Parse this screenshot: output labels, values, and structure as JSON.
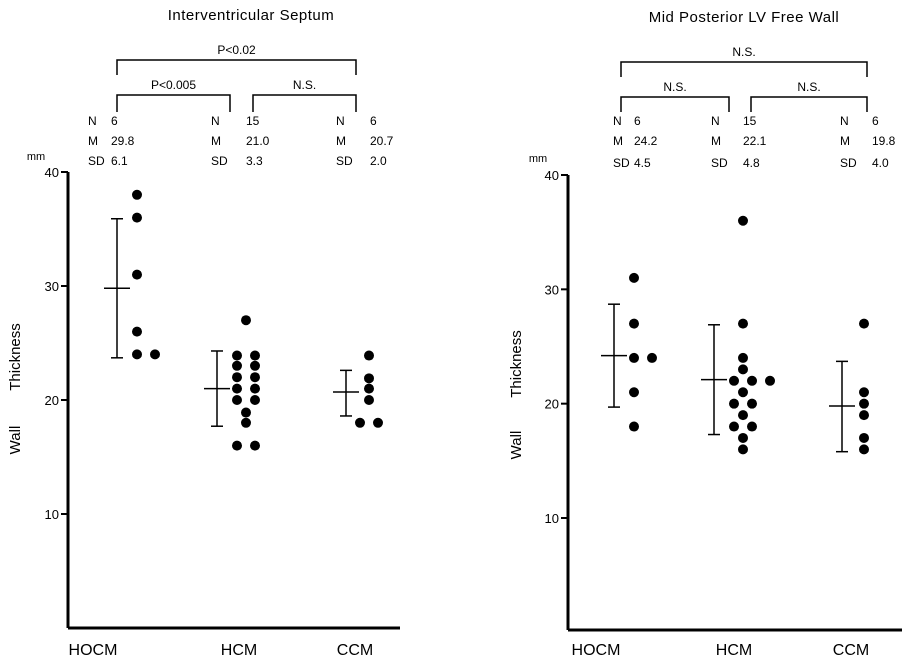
{
  "chart_data": [
    {
      "type": "scatter",
      "title": "Interventricular Septum",
      "unit": "mm",
      "ylabel_left": "Wall",
      "ylabel_right": "Thickness",
      "ylim": [
        0,
        40
      ],
      "yticks": [
        10,
        20,
        30,
        40
      ],
      "categories": [
        "HOCM",
        "HCM",
        "CCM"
      ],
      "groups": [
        {
          "category": "HOCM",
          "stats": {
            "N": "6",
            "M": "29.8",
            "SD": "6.1"
          },
          "mean": 29.8,
          "sd_low": 23.7,
          "sd_high": 35.9,
          "values": [
            38,
            36,
            31,
            26,
            24,
            24
          ]
        },
        {
          "category": "HCM",
          "stats": {
            "N": "15",
            "M": "21.0",
            "SD": "3.3"
          },
          "mean": 21.0,
          "sd_low": 17.7,
          "sd_high": 24.3,
          "values": [
            27,
            23.9,
            23.9,
            23,
            23,
            22,
            22,
            21,
            21,
            20,
            20,
            18.9,
            18,
            16,
            16
          ]
        },
        {
          "category": "CCM",
          "stats": {
            "N": "6",
            "M": "20.7",
            "SD": "2.0"
          },
          "mean": 20.7,
          "sd_low": 18.6,
          "sd_high": 22.6,
          "values": [
            23.9,
            21.9,
            21,
            20,
            18,
            18
          ]
        }
      ],
      "significance": [
        {
          "from": 0,
          "to": 2,
          "label": "P<0.02",
          "level": 0
        },
        {
          "from": 0,
          "to": 1,
          "label": "P<0.005",
          "level": 1
        },
        {
          "from": 1,
          "to": 2,
          "label": "N.S.",
          "level": 1
        }
      ]
    },
    {
      "type": "scatter",
      "title": "Mid Posterior LV Free Wall",
      "unit": "mm",
      "ylabel_left": "Wall",
      "ylabel_right": "Thickness",
      "ylim": [
        0,
        40
      ],
      "yticks": [
        10,
        20,
        30,
        40
      ],
      "categories": [
        "HOCM",
        "HCM",
        "CCM"
      ],
      "groups": [
        {
          "category": "HOCM",
          "stats": {
            "N": "6",
            "M": "24.2",
            "SD": "4.5"
          },
          "mean": 24.2,
          "sd_low": 19.7,
          "sd_high": 28.7,
          "values": [
            31,
            27,
            24,
            24,
            21,
            18
          ]
        },
        {
          "category": "HCM",
          "stats": {
            "N": "15",
            "M": "22.1",
            "SD": "4.8"
          },
          "mean": 22.1,
          "sd_low": 17.3,
          "sd_high": 26.9,
          "values": [
            36,
            27,
            24,
            23,
            22,
            22,
            22,
            21,
            20,
            20,
            19,
            18,
            18,
            17,
            16
          ]
        },
        {
          "category": "CCM",
          "stats": {
            "N": "6",
            "M": "19.8",
            "SD": "4.0"
          },
          "mean": 19.8,
          "sd_low": 15.8,
          "sd_high": 23.7,
          "values": [
            27,
            21,
            20,
            19,
            17,
            16
          ]
        }
      ],
      "significance": [
        {
          "from": 0,
          "to": 2,
          "label": "N.S.",
          "level": 0
        },
        {
          "from": 0,
          "to": 1,
          "label": "N.S.",
          "level": 1
        },
        {
          "from": 1,
          "to": 2,
          "label": "N.S.",
          "level": 1
        }
      ]
    }
  ]
}
